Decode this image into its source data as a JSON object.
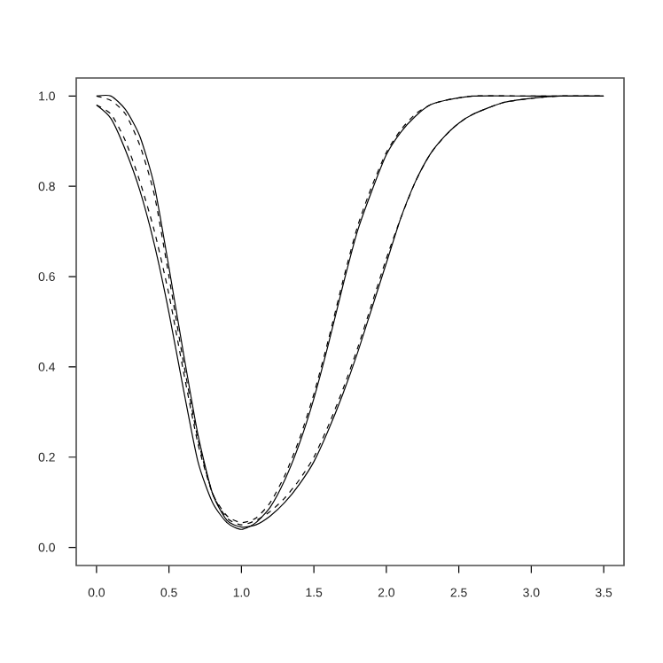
{
  "chart_data": {
    "type": "line",
    "xlim": [
      -0.14,
      3.64
    ],
    "ylim": [
      -0.04,
      1.04
    ],
    "xticks": [
      {
        "value": 0,
        "label": "0.0"
      },
      {
        "value": 0.5,
        "label": "0.5"
      },
      {
        "value": 1,
        "label": "1.0"
      },
      {
        "value": 1.5,
        "label": "1.5"
      },
      {
        "value": 2,
        "label": "2.0"
      },
      {
        "value": 2.5,
        "label": "2.5"
      },
      {
        "value": 3,
        "label": "3.0"
      },
      {
        "value": 3.5,
        "label": "3.5"
      }
    ],
    "yticks": [
      {
        "value": 0,
        "label": "0.0"
      },
      {
        "value": 0.2,
        "label": "0.2"
      },
      {
        "value": 0.4,
        "label": "0.4"
      },
      {
        "value": 0.6,
        "label": "0.6"
      },
      {
        "value": 0.8,
        "label": "0.8"
      },
      {
        "value": 1,
        "label": "1.0"
      }
    ],
    "marker": "none",
    "series": [
      {
        "color": "#000000",
        "line_style": "solid",
        "x": [
          0,
          0.1,
          0.2,
          0.3,
          0.4,
          0.5,
          0.6,
          0.7,
          0.8,
          0.9,
          1.0,
          1.1,
          1.2,
          1.3,
          1.4,
          1.5,
          1.6,
          1.7,
          1.8,
          1.9,
          2.0,
          2.1,
          2.2,
          2.3,
          2.4,
          2.6,
          3.0,
          3.5
        ],
        "values": [
          0.98,
          0.95,
          0.88,
          0.79,
          0.67,
          0.52,
          0.35,
          0.19,
          0.1,
          0.055,
          0.04,
          0.055,
          0.09,
          0.15,
          0.23,
          0.33,
          0.45,
          0.58,
          0.7,
          0.79,
          0.87,
          0.92,
          0.955,
          0.98,
          0.99,
          1.0,
          1.0,
          1.0
        ]
      },
      {
        "color": "#000000",
        "line_style": "dashed",
        "x": [
          0,
          0.1,
          0.2,
          0.3,
          0.4,
          0.5,
          0.6,
          0.7,
          0.8,
          0.9,
          1.0,
          1.1,
          1.2,
          1.3,
          1.4,
          1.5,
          1.6,
          1.7,
          1.8,
          1.9,
          2.0,
          2.1,
          2.2,
          2.3,
          2.4,
          2.6,
          3.0,
          3.5
        ],
        "values": [
          0.98,
          0.96,
          0.9,
          0.81,
          0.7,
          0.56,
          0.39,
          0.23,
          0.12,
          0.07,
          0.055,
          0.065,
          0.1,
          0.16,
          0.24,
          0.34,
          0.46,
          0.59,
          0.71,
          0.8,
          0.875,
          0.925,
          0.96,
          0.98,
          0.99,
          1.0,
          1.0,
          1.0
        ]
      },
      {
        "color": "#000000",
        "line_style": "solid",
        "x": [
          0,
          0.1,
          0.2,
          0.3,
          0.4,
          0.5,
          0.6,
          0.7,
          0.8,
          0.9,
          1.0,
          1.1,
          1.2,
          1.3,
          1.4,
          1.5,
          1.6,
          1.7,
          1.8,
          1.9,
          2.0,
          2.1,
          2.2,
          2.3,
          2.4,
          2.5,
          2.6,
          2.8,
          3.0,
          3.2,
          3.5
        ],
        "values": [
          1.0,
          1.0,
          0.97,
          0.91,
          0.8,
          0.62,
          0.43,
          0.25,
          0.12,
          0.06,
          0.045,
          0.05,
          0.07,
          0.1,
          0.14,
          0.19,
          0.26,
          0.34,
          0.43,
          0.53,
          0.63,
          0.73,
          0.81,
          0.87,
          0.91,
          0.94,
          0.96,
          0.985,
          0.995,
          1.0,
          1.0
        ]
      },
      {
        "color": "#000000",
        "line_style": "dashed",
        "x": [
          0,
          0.1,
          0.2,
          0.3,
          0.4,
          0.5,
          0.6,
          0.7,
          0.8,
          0.9,
          1.0,
          1.1,
          1.2,
          1.3,
          1.4,
          1.5,
          1.6,
          1.7,
          1.8,
          1.9,
          2.0,
          2.1,
          2.2,
          2.3,
          2.4,
          2.5,
          2.6,
          2.8,
          3.0,
          3.2,
          3.5
        ],
        "values": [
          1.0,
          0.99,
          0.96,
          0.89,
          0.78,
          0.6,
          0.41,
          0.24,
          0.12,
          0.065,
          0.05,
          0.06,
          0.08,
          0.11,
          0.15,
          0.2,
          0.27,
          0.35,
          0.44,
          0.54,
          0.64,
          0.73,
          0.81,
          0.87,
          0.91,
          0.94,
          0.96,
          0.985,
          0.995,
          1.0,
          1.0
        ]
      }
    ]
  }
}
